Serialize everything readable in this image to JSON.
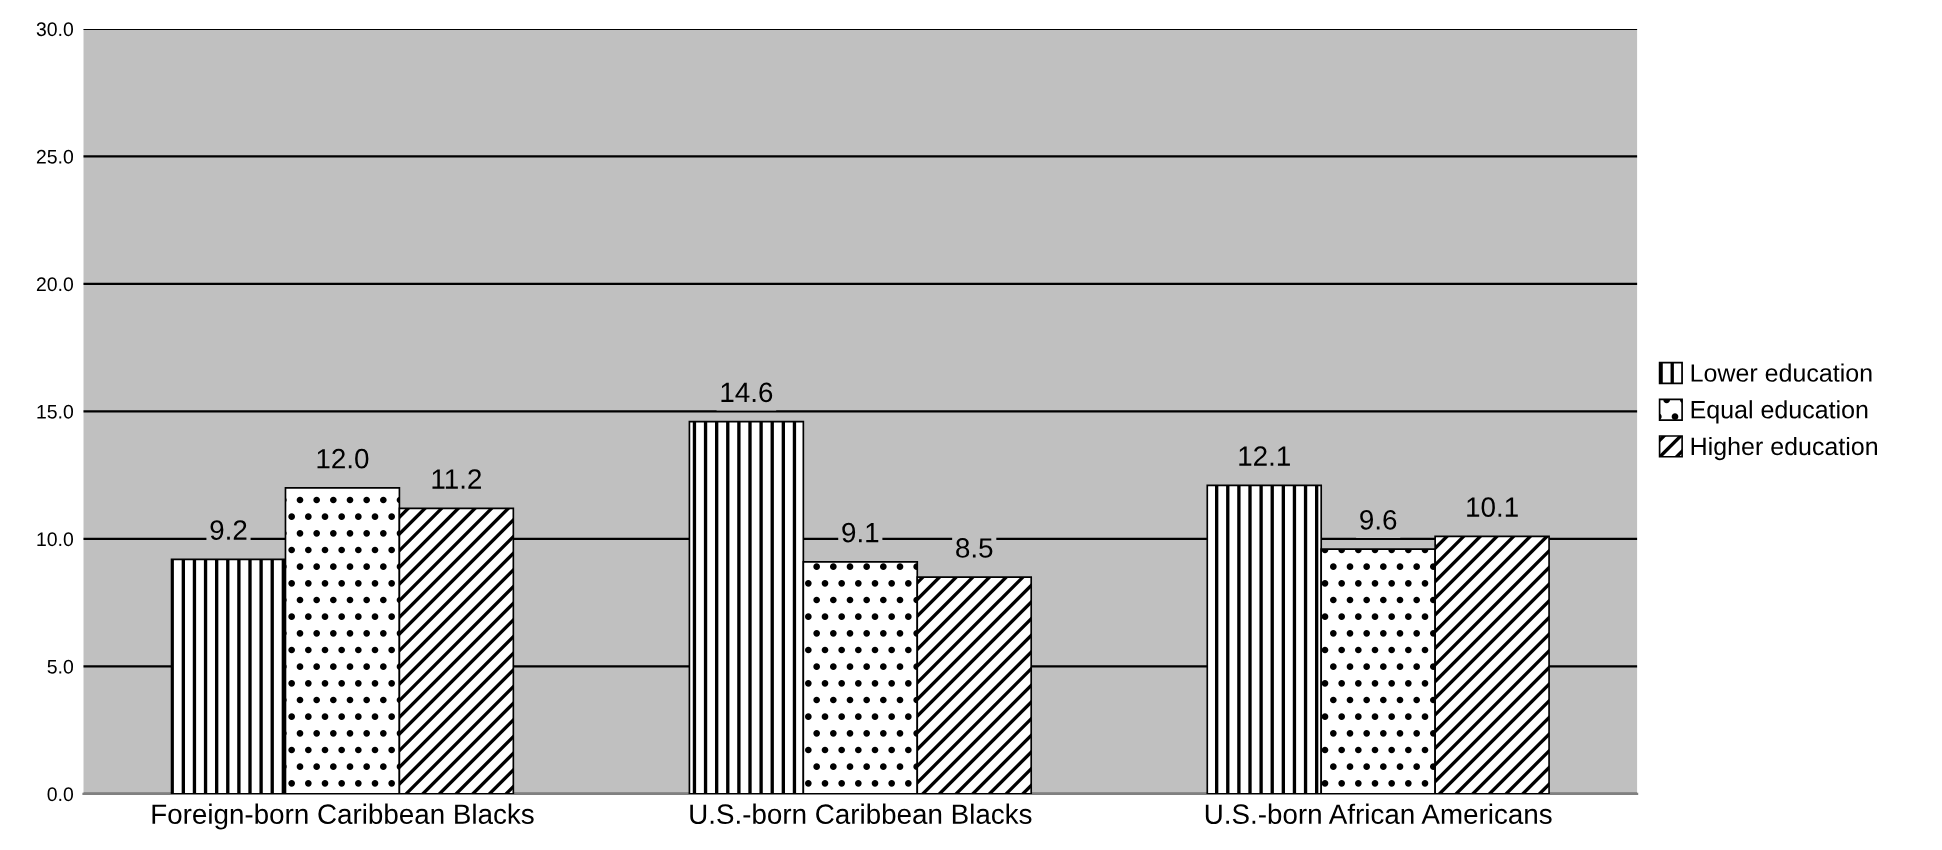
{
  "chart_data": {
    "type": "bar",
    "categories": [
      "Foreign-born Caribbean Blacks",
      "U.S.-born Caribbean Blacks",
      "U.S.-born African Americans"
    ],
    "series": [
      {
        "name": "Lower education",
        "color": "#000000",
        "values": [
          9.2,
          14.6,
          12.1
        ],
        "value_labels": [
          "9.2",
          "14.6",
          "12.1"
        ]
      },
      {
        "name": "Equal education",
        "color": "#000000",
        "values": [
          12.0,
          9.1,
          9.6
        ],
        "value_labels": [
          "12.0",
          "9.1",
          "9.6"
        ]
      },
      {
        "name": "Higher education",
        "color": "#000000",
        "values": [
          11.2,
          8.5,
          10.1
        ],
        "value_labels": [
          "11.2",
          "8.5",
          "10.1"
        ]
      }
    ],
    "ylim": [
      0,
      30
    ],
    "yticks": [
      {
        "value": 0,
        "label": "0.0"
      },
      {
        "value": 5,
        "label": "5.0"
      },
      {
        "value": 10,
        "label": "10.0"
      },
      {
        "value": 15,
        "label": "15.0"
      },
      {
        "value": 20,
        "label": "20.0"
      },
      {
        "value": 25,
        "label": "25.0"
      },
      {
        "value": 30,
        "label": "30.0"
      }
    ],
    "grid": "y",
    "legend": "right"
  }
}
